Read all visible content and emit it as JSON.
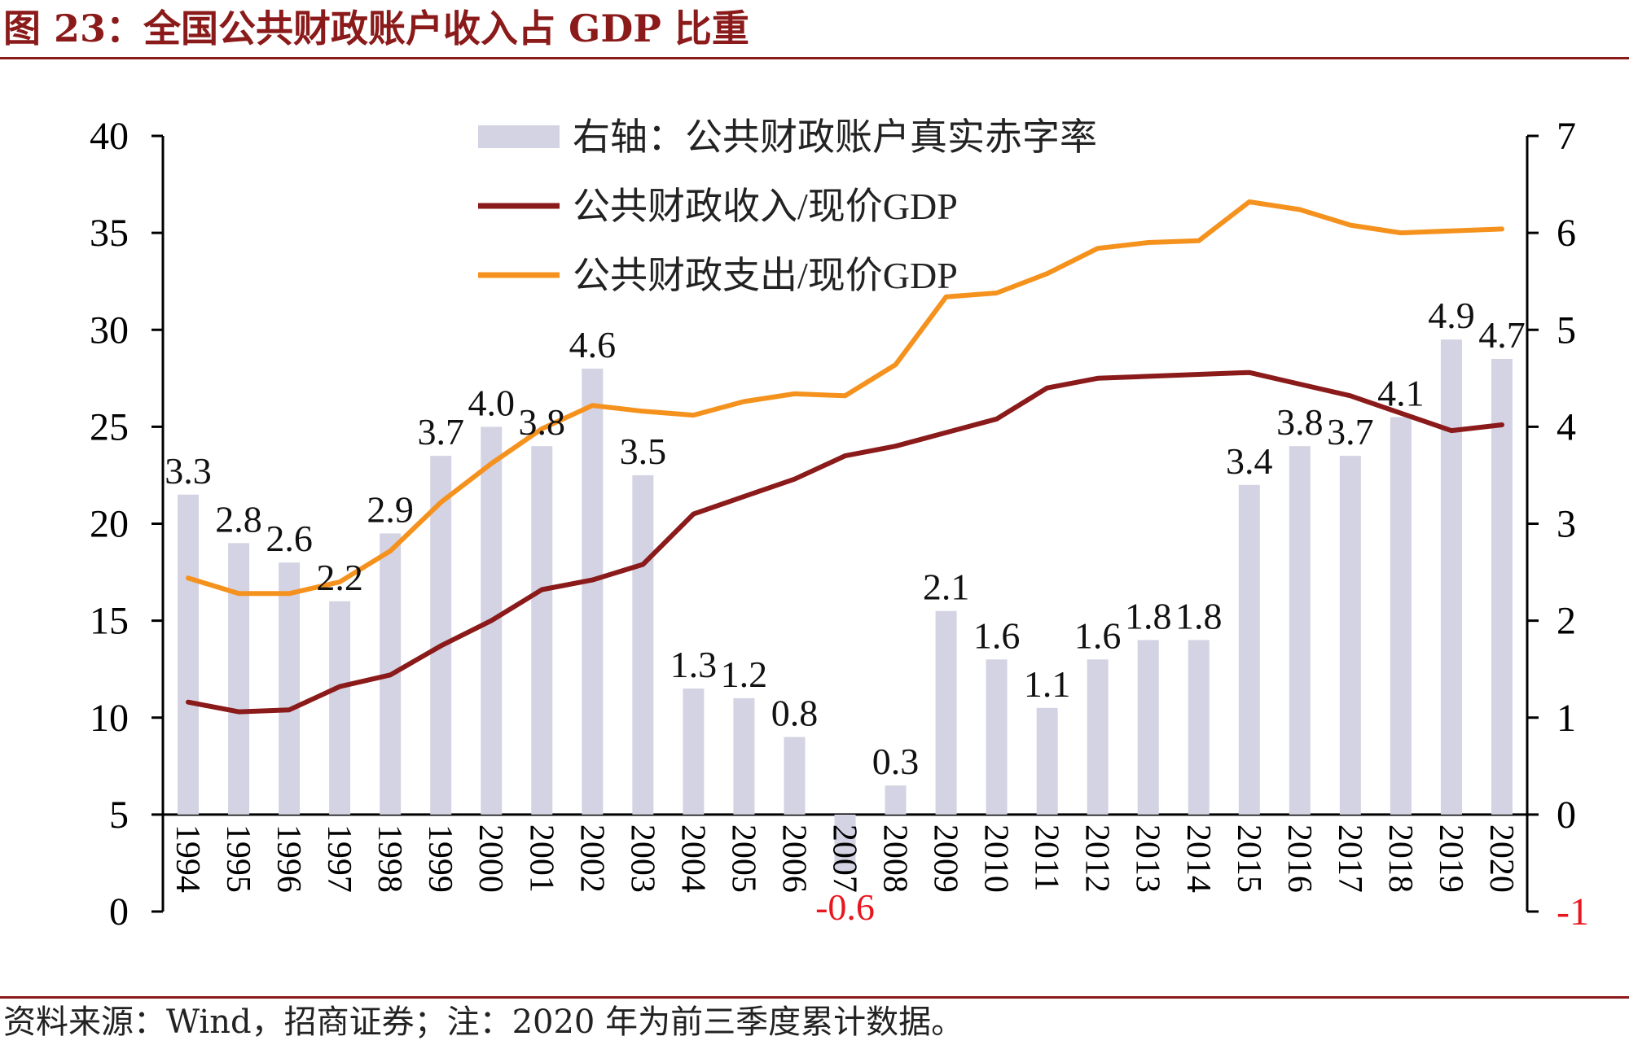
{
  "title": "图 23：全国公共财政账户收入占 GDP 比重",
  "source": "资料来源：Wind，招商证券；注：2020 年为前三季度累计数据。",
  "chart_data": {
    "type": "bar+line",
    "categories": [
      "1994",
      "1995",
      "1996",
      "1997",
      "1998",
      "1999",
      "2000",
      "2001",
      "2002",
      "2003",
      "2004",
      "2005",
      "2006",
      "2007",
      "2008",
      "2009",
      "2010",
      "2011",
      "2012",
      "2013",
      "2014",
      "2015",
      "2016",
      "2017",
      "2018",
      "2019",
      "2020"
    ],
    "left_axis": {
      "ylim": [
        0,
        40
      ],
      "ticks": [
        "0",
        "5",
        "10",
        "15",
        "20",
        "25",
        "30",
        "35",
        "40"
      ]
    },
    "right_axis": {
      "ylim": [
        -1,
        7
      ],
      "ticks": [
        "-1",
        "0",
        "1",
        "2",
        "3",
        "4",
        "5",
        "6",
        "7"
      ]
    },
    "legend_placement": "top-center",
    "series": [
      {
        "name": "右轴：公共财政账户真实赤字率",
        "kind": "bar",
        "axis": "right",
        "color": "#d3d3e3",
        "values": [
          3.3,
          2.8,
          2.6,
          2.2,
          2.9,
          3.7,
          4.0,
          3.8,
          4.6,
          3.5,
          1.3,
          1.2,
          0.8,
          -0.6,
          0.3,
          2.1,
          1.6,
          1.1,
          1.6,
          1.8,
          1.8,
          3.4,
          3.8,
          3.7,
          4.1,
          4.9,
          4.7
        ],
        "labels": [
          "3.3",
          "2.8",
          "2.6",
          "2.2",
          "2.9",
          "3.7",
          "4.0",
          "3.8",
          "4.6",
          "3.5",
          "1.3",
          "1.2",
          "0.8",
          "-0.6",
          "0.3",
          "2.1",
          "1.6",
          "1.1",
          "1.6",
          "1.8",
          "1.8",
          "3.4",
          "3.8",
          "3.7",
          "4.1",
          "4.9",
          "4.7"
        ]
      },
      {
        "name": "公共财政收入/现价GDP",
        "kind": "line",
        "axis": "left",
        "color": "#8b1a1a",
        "values": [
          10.8,
          10.3,
          10.4,
          11.6,
          12.2,
          13.7,
          15.0,
          16.6,
          17.1,
          17.9,
          20.5,
          21.4,
          22.3,
          23.5,
          24.0,
          24.7,
          25.4,
          27.0,
          27.5,
          27.6,
          27.7,
          27.8,
          27.2,
          26.6,
          25.7,
          24.8,
          25.1
        ]
      },
      {
        "name": "公共财政支出/现价GDP",
        "kind": "line",
        "axis": "left",
        "color": "#f5921e",
        "values": [
          17.2,
          16.4,
          16.4,
          17.0,
          18.6,
          21.1,
          23.1,
          24.9,
          26.1,
          25.8,
          25.6,
          26.3,
          26.7,
          26.6,
          28.2,
          31.7,
          31.9,
          32.9,
          34.2,
          34.5,
          34.6,
          36.6,
          36.2,
          35.4,
          35.0,
          35.1,
          35.2
        ]
      }
    ]
  },
  "colors": {
    "title": "#8b1a1a",
    "negative_label": "#e8161f",
    "axis": "#000000"
  }
}
